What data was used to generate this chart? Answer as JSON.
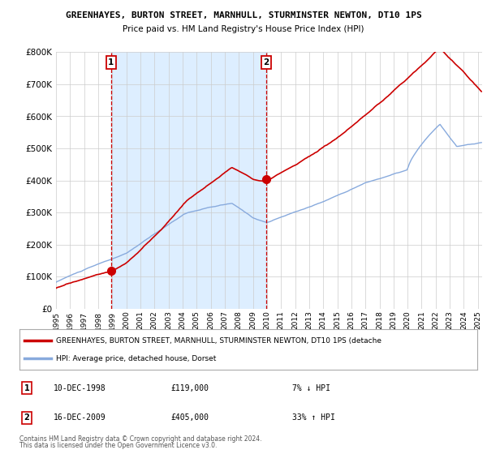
{
  "title": "GREENHAYES, BURTON STREET, MARNHULL, STURMINSTER NEWTON, DT10 1PS",
  "subtitle": "Price paid vs. HM Land Registry's House Price Index (HPI)",
  "ylim": [
    0,
    800000
  ],
  "yticks": [
    0,
    100000,
    200000,
    300000,
    400000,
    500000,
    600000,
    700000,
    800000
  ],
  "ytick_labels": [
    "£0",
    "£100K",
    "£200K",
    "£300K",
    "£400K",
    "£500K",
    "£600K",
    "£700K",
    "£800K"
  ],
  "hpi_color": "#88aadd",
  "price_color": "#cc0000",
  "shade_color": "#ddeeff",
  "transaction1": {
    "year": 1998.92,
    "price": 119000,
    "label": "1",
    "hpi_pct": "7%",
    "hpi_dir": "↓",
    "date_str": "10-DEC-1998"
  },
  "transaction2": {
    "year": 2009.96,
    "price": 405000,
    "label": "2",
    "hpi_pct": "33%",
    "hpi_dir": "↑",
    "date_str": "16-DEC-2009"
  },
  "legend_line1": "GREENHAYES, BURTON STREET, MARNHULL, STURMINSTER NEWTON, DT10 1PS (detache",
  "legend_line2": "HPI: Average price, detached house, Dorset",
  "footer1": "Contains HM Land Registry data © Crown copyright and database right 2024.",
  "footer2": "This data is licensed under the Open Government Licence v3.0.",
  "background_color": "#ffffff",
  "grid_color": "#cccccc",
  "xlim_start": 1995,
  "xlim_end": 2025.3
}
